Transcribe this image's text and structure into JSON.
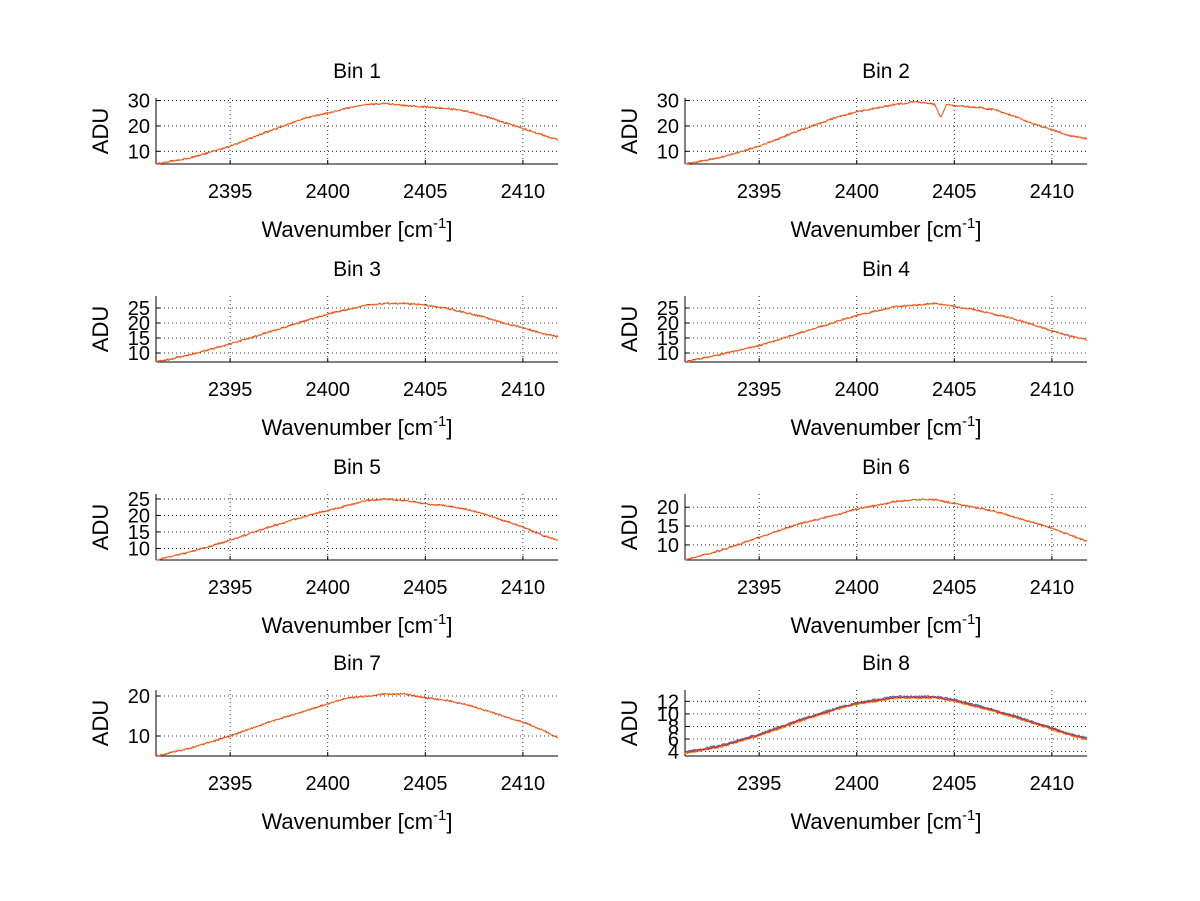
{
  "figure": {
    "background": "#ffffff",
    "grid": "dotted",
    "series_colors": [
      "#d62728",
      "#ff7f0e",
      "#1f77b4",
      "#2ca02c",
      "#9467bd"
    ]
  },
  "chart_data": [
    {
      "type": "line",
      "title": "Bin 1",
      "xlabel": "Wavenumber [cm",
      "xlabel_sup": "-1",
      "xlabel_end": "]",
      "ylabel": "ADU",
      "xlim": [
        2391.2,
        2411.8
      ],
      "ylim": [
        5,
        31
      ],
      "xticks": [
        2395,
        2400,
        2405,
        2410
      ],
      "yticks": [
        10,
        20,
        30
      ],
      "grid": true,
      "x": [
        2391.2,
        2393,
        2395,
        2397,
        2399,
        2400,
        2401,
        2402,
        2403,
        2404,
        2405,
        2406,
        2407,
        2408,
        2409,
        2410,
        2411,
        2411.8
      ],
      "series": [
        {
          "values": [
            5,
            7.5,
            12,
            18,
            23.5,
            25,
            27,
            28.5,
            28.8,
            28,
            27.5,
            27,
            26,
            24,
            21.5,
            19,
            16.5,
            14.5
          ]
        }
      ]
    },
    {
      "type": "line",
      "title": "Bin 2",
      "xlabel": "Wavenumber [cm",
      "xlabel_sup": "-1",
      "xlabel_end": "]",
      "ylabel": "ADU",
      "xlim": [
        2391.2,
        2411.8
      ],
      "ylim": [
        5,
        31
      ],
      "xticks": [
        2395,
        2400,
        2405,
        2410
      ],
      "yticks": [
        10,
        20,
        30
      ],
      "grid": true,
      "x": [
        2391.2,
        2393,
        2395,
        2397,
        2399,
        2400,
        2401,
        2402,
        2403,
        2404,
        2404.3,
        2404.6,
        2405,
        2406,
        2407,
        2408,
        2409,
        2410,
        2411,
        2411.8
      ],
      "series": [
        {
          "values": [
            5,
            7.5,
            12,
            18,
            23.5,
            25.5,
            27,
            28.5,
            29.5,
            28.5,
            23,
            28.5,
            28,
            27.5,
            26.5,
            24,
            21,
            18.5,
            16,
            15
          ]
        }
      ]
    },
    {
      "type": "line",
      "title": "Bin 3",
      "xlabel": "Wavenumber [cm",
      "xlabel_sup": "-1",
      "xlabel_end": "]",
      "ylabel": "ADU",
      "xlim": [
        2391.2,
        2411.8
      ],
      "ylim": [
        7,
        29
      ],
      "xticks": [
        2395,
        2400,
        2405,
        2410
      ],
      "yticks": [
        10,
        15,
        20,
        25
      ],
      "grid": true,
      "x": [
        2391.2,
        2393,
        2395,
        2397,
        2399,
        2400,
        2401,
        2402,
        2403,
        2404,
        2405,
        2406,
        2407,
        2408,
        2409,
        2410,
        2411,
        2411.8
      ],
      "series": [
        {
          "values": [
            7,
            9.5,
            13,
            17,
            21,
            23,
            24.5,
            26,
            26.5,
            26.5,
            26,
            25,
            23.5,
            22,
            20,
            18.5,
            16.5,
            15.5
          ]
        }
      ]
    },
    {
      "type": "line",
      "title": "Bin 4",
      "xlabel": "Wavenumber [cm",
      "xlabel_sup": "-1",
      "xlabel_end": "]",
      "ylabel": "ADU",
      "xlim": [
        2391.2,
        2411.8
      ],
      "ylim": [
        7,
        29
      ],
      "xticks": [
        2395,
        2400,
        2405,
        2410
      ],
      "yticks": [
        10,
        15,
        20,
        25
      ],
      "grid": true,
      "x": [
        2391.2,
        2393,
        2395,
        2397,
        2399,
        2400,
        2401,
        2402,
        2403,
        2404,
        2405,
        2406,
        2407,
        2408,
        2409,
        2410,
        2411,
        2411.8
      ],
      "series": [
        {
          "values": [
            7,
            9.5,
            12.5,
            16.5,
            20.5,
            22.5,
            24,
            25.5,
            26,
            26.5,
            25.5,
            24.5,
            23,
            21.5,
            19.5,
            17.5,
            15.5,
            14.5
          ]
        }
      ]
    },
    {
      "type": "line",
      "title": "Bin 5",
      "xlabel": "Wavenumber [cm",
      "xlabel_sup": "-1",
      "xlabel_end": "]",
      "ylabel": "ADU",
      "xlim": [
        2391.2,
        2411.8
      ],
      "ylim": [
        6.5,
        26.5
      ],
      "xticks": [
        2395,
        2400,
        2405,
        2410
      ],
      "yticks": [
        10,
        15,
        20,
        25
      ],
      "grid": true,
      "x": [
        2391.2,
        2393,
        2395,
        2397,
        2399,
        2400,
        2401,
        2402,
        2403,
        2404,
        2405,
        2406,
        2407,
        2408,
        2409,
        2410,
        2411,
        2411.8
      ],
      "series": [
        {
          "values": [
            6.5,
            9,
            12.5,
            16.5,
            20,
            21.5,
            23,
            24.5,
            25,
            24.5,
            23.5,
            23,
            22,
            20.5,
            18.5,
            16.5,
            14,
            12.5
          ]
        }
      ]
    },
    {
      "type": "line",
      "title": "Bin 6",
      "xlabel": "Wavenumber [cm",
      "xlabel_sup": "-1",
      "xlabel_end": "]",
      "ylabel": "ADU",
      "xlim": [
        2391.2,
        2411.8
      ],
      "ylim": [
        6,
        23.5
      ],
      "xticks": [
        2395,
        2400,
        2405,
        2410
      ],
      "yticks": [
        10,
        15,
        20
      ],
      "grid": true,
      "x": [
        2391.2,
        2393,
        2395,
        2397,
        2399,
        2400,
        2401,
        2402,
        2403,
        2404,
        2405,
        2406,
        2407,
        2408,
        2409,
        2410,
        2411,
        2411.8
      ],
      "series": [
        {
          "values": [
            6,
            8.5,
            12,
            15.5,
            18,
            19.5,
            20.5,
            21.5,
            22,
            22,
            21,
            20,
            19,
            17.5,
            16,
            14.5,
            12.5,
            11
          ]
        }
      ]
    },
    {
      "type": "line",
      "title": "Bin 7",
      "xlabel": "Wavenumber [cm",
      "xlabel_sup": "-1",
      "xlabel_end": "]",
      "ylabel": "ADU",
      "xlim": [
        2391.2,
        2411.8
      ],
      "ylim": [
        5,
        21.5
      ],
      "xticks": [
        2395,
        2400,
        2405,
        2410
      ],
      "yticks": [
        10,
        20
      ],
      "grid": true,
      "x": [
        2391.2,
        2393,
        2395,
        2397,
        2399,
        2400,
        2401,
        2402,
        2403,
        2404,
        2405,
        2406,
        2407,
        2408,
        2409,
        2410,
        2411,
        2411.8
      ],
      "series": [
        {
          "values": [
            5,
            7,
            10,
            13.5,
            16.5,
            18,
            19.5,
            20,
            20.5,
            20.5,
            19.5,
            19,
            18,
            16.5,
            15,
            13.5,
            11.5,
            9.5
          ]
        }
      ]
    },
    {
      "type": "line",
      "title": "Bin 8",
      "xlabel": "Wavenumber [cm",
      "xlabel_sup": "-1",
      "xlabel_end": "]",
      "ylabel": "ADU",
      "xlim": [
        2391.2,
        2411.8
      ],
      "ylim": [
        3.3,
        13.8
      ],
      "xticks": [
        2395,
        2400,
        2405,
        2410
      ],
      "yticks": [
        4,
        6,
        8,
        10,
        12
      ],
      "grid": true,
      "x": [
        2391.2,
        2393,
        2395,
        2397,
        2399,
        2400,
        2401,
        2402,
        2403,
        2404,
        2405,
        2406,
        2407,
        2408,
        2409,
        2410,
        2411,
        2411.8
      ],
      "series": [
        {
          "values": [
            4,
            5,
            6.8,
            9,
            11,
            11.8,
            12.3,
            12.8,
            12.8,
            12.8,
            12.3,
            11.5,
            10.7,
            9.8,
            8.8,
            7.8,
            6.8,
            6.2
          ]
        },
        {
          "values": [
            3.8,
            4.8,
            6.6,
            8.8,
            10.8,
            11.6,
            12.1,
            12.6,
            12.6,
            12.6,
            12.1,
            11.3,
            10.5,
            9.6,
            8.6,
            7.6,
            6.6,
            6
          ]
        },
        {
          "values": [
            3.9,
            4.9,
            6.7,
            8.9,
            10.9,
            11.7,
            12.2,
            12.7,
            12.7,
            12.7,
            12.2,
            11.4,
            10.6,
            9.7,
            8.7,
            7.7,
            6.7,
            6.1
          ]
        },
        {
          "values": [
            3.7,
            4.7,
            6.5,
            8.7,
            10.7,
            11.5,
            12,
            12.5,
            12.5,
            12.5,
            12,
            11.2,
            10.4,
            9.5,
            8.5,
            7.5,
            6.5,
            5.9
          ]
        },
        {
          "values": [
            3.85,
            4.85,
            6.65,
            8.85,
            10.85,
            11.65,
            12.15,
            12.65,
            12.65,
            12.65,
            12.15,
            11.35,
            10.55,
            9.65,
            8.65,
            7.65,
            6.65,
            6.05
          ]
        }
      ]
    }
  ]
}
